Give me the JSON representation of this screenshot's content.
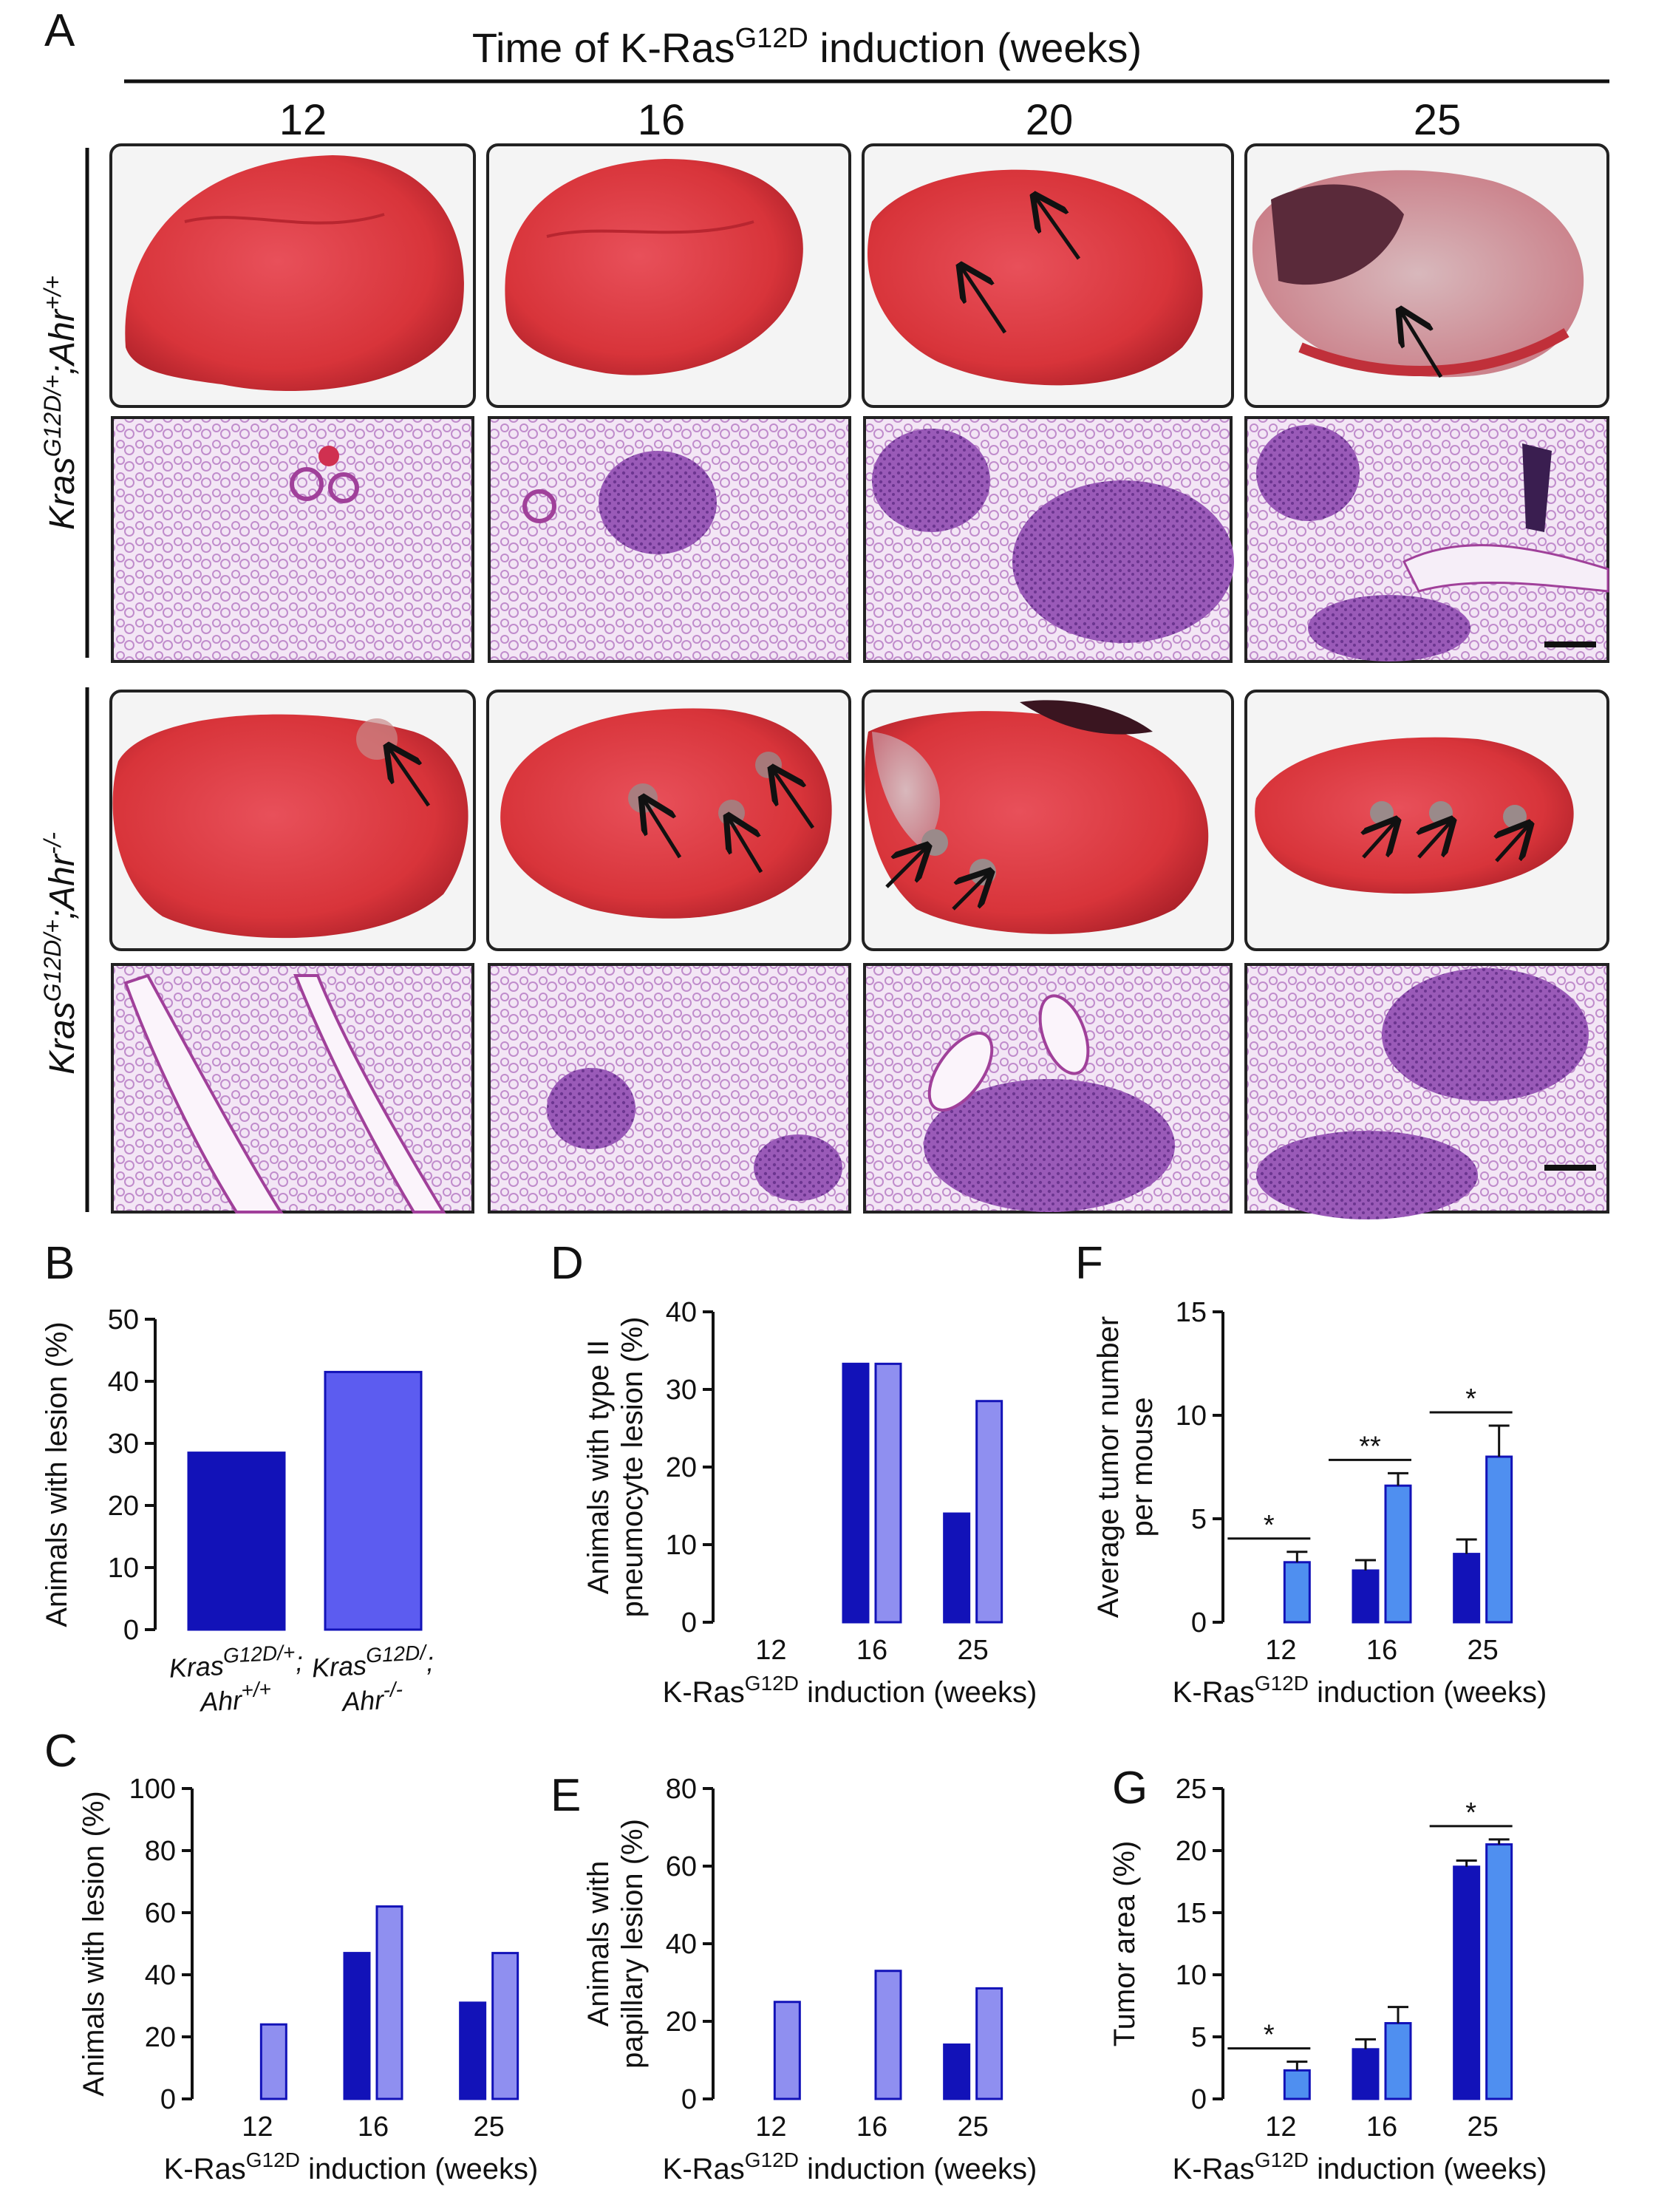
{
  "panel_A": {
    "letter": "A",
    "title_prefix": "Time of K-Ras",
    "title_sup": "G12D",
    "title_suffix": " induction (weeks)",
    "weeks": [
      "12",
      "16",
      "20",
      "25"
    ],
    "row_labels": [
      {
        "base": "Kras",
        "sup1": "G12D/+",
        "mid": ";Ahr",
        "sup2": "+/+"
      },
      {
        "base": "Kras",
        "sup1": "G12D/+",
        "mid": ";Ahr",
        "sup2": "-/-"
      }
    ],
    "colors": {
      "lung": "#d8343a",
      "lung_dark": "#a81f28",
      "histo_bg": "#f1e4f3",
      "histo_tissue": "#b870c4",
      "histo_dense": "#8a4aa8"
    }
  },
  "colors": {
    "dark_blue": "#1212b8",
    "light_blue": "#8f8ff0",
    "medium_blue": "#4f8ff0"
  },
  "xlabel_parts": {
    "prefix": "K-Ras",
    "sup": "G12D",
    "suffix": " induction (weeks)"
  },
  "chart_data": [
    {
      "id": "B",
      "type": "bar",
      "categories": [
        "Kras G12D/+; Ahr+/+",
        "Kras G12D/; Ahr-/-"
      ],
      "cat_lines": [
        [
          "Kras",
          "G12D/+",
          ";"
        ],
        [
          "Ahr",
          "+/+",
          ""
        ],
        [
          "Kras",
          "G12D/",
          ";"
        ],
        [
          "Ahr",
          "-/-",
          ""
        ]
      ],
      "values": [
        28.5,
        41.5
      ],
      "ylabel": "Animals with lesion (%)",
      "ylim": [
        0,
        50
      ],
      "yticks": [
        0,
        10,
        20,
        30,
        40,
        50
      ]
    },
    {
      "id": "C",
      "type": "bar",
      "categories": [
        "12",
        "16",
        "25"
      ],
      "series": [
        {
          "values": [
            0,
            47,
            31
          ]
        },
        {
          "values": [
            24,
            62,
            47
          ]
        }
      ],
      "ylabel": "Animals with lesion (%)",
      "ylim": [
        0,
        100
      ],
      "yticks": [
        0,
        20,
        40,
        60,
        80,
        100
      ]
    },
    {
      "id": "D",
      "type": "bar",
      "categories": [
        "12",
        "16",
        "25"
      ],
      "series": [
        {
          "values": [
            0,
            33.3,
            14
          ]
        },
        {
          "values": [
            0,
            33.3,
            28.5
          ]
        }
      ],
      "ylabel_lines": [
        "Animals with type II",
        "pneumocyte lesion (%)"
      ],
      "ylim": [
        0,
        40
      ],
      "yticks": [
        0,
        10,
        20,
        30,
        40
      ]
    },
    {
      "id": "E",
      "type": "bar",
      "categories": [
        "12",
        "16",
        "25"
      ],
      "series": [
        {
          "values": [
            0,
            0,
            14
          ]
        },
        {
          "values": [
            25,
            33,
            28.5
          ]
        }
      ],
      "ylabel_lines": [
        "Animals with",
        "papillary lesion (%)"
      ],
      "ylim": [
        0,
        80
      ],
      "yticks": [
        0,
        20,
        40,
        60,
        80
      ]
    },
    {
      "id": "F",
      "type": "bar",
      "categories": [
        "12",
        "16",
        "25"
      ],
      "series": [
        {
          "values": [
            0,
            2.5,
            3.3
          ],
          "errors": [
            0,
            0.5,
            0.7
          ]
        },
        {
          "values": [
            2.9,
            6.6,
            8.0
          ],
          "errors": [
            0.5,
            0.6,
            1.5
          ]
        }
      ],
      "ylabel_lines": [
        "Average tumor number",
        "per mouse"
      ],
      "ylim": [
        0,
        15
      ],
      "yticks": [
        0,
        5,
        10,
        15
      ],
      "significance": [
        "*",
        "**",
        "*"
      ]
    },
    {
      "id": "G",
      "type": "bar",
      "categories": [
        "12",
        "16",
        "25"
      ],
      "series": [
        {
          "values": [
            0,
            4.0,
            18.7
          ],
          "errors": [
            0,
            0.8,
            0.5
          ]
        },
        {
          "values": [
            2.3,
            6.1,
            20.5
          ],
          "errors": [
            0.7,
            1.3,
            0.4
          ]
        }
      ],
      "ylabel": "Tumor area (%)",
      "ylim": [
        0,
        25
      ],
      "yticks": [
        0,
        5,
        10,
        15,
        20,
        25
      ],
      "significance": [
        "*",
        null,
        "*"
      ]
    }
  ]
}
